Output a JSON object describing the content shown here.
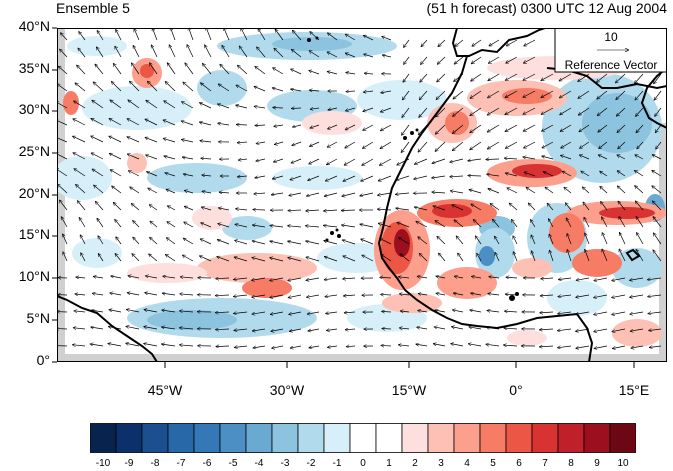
{
  "panel_title": "Ensemble 5",
  "forecast_title": "(51 h forecast) 0300 UTC 12 Aug 2004",
  "reference_vector": {
    "value": "10",
    "label": "Reference Vector"
  },
  "lat_ticks": [
    "40°N",
    "35°N",
    "30°N",
    "25°N",
    "20°N",
    "15°N",
    "10°N",
    "5°N",
    "0°"
  ],
  "lon_ticks": [
    "45°W",
    "30°W",
    "15°W",
    "0°",
    "15°E"
  ],
  "colorbar": {
    "labels": [
      "-10",
      "-9",
      "-8",
      "-7",
      "-6",
      "-5",
      "-4",
      "-3",
      "-2",
      "-1",
      "0",
      "1",
      "2",
      "3",
      "4",
      "5",
      "6",
      "7",
      "8",
      "9",
      "10"
    ],
    "colors": [
      "#08234d",
      "#0b306b",
      "#1b4f8f",
      "#2868a8",
      "#3478b8",
      "#4b8fc4",
      "#6aa9d2",
      "#8cc3df",
      "#b1dbec",
      "#d7eff8",
      "#ffffff",
      "#ffffff",
      "#fde0dd",
      "#fcc0b4",
      "#fc9f8c",
      "#f77c66",
      "#ec5644",
      "#d93232",
      "#c0202a",
      "#9b0f1f",
      "#6e0714"
    ]
  }
}
